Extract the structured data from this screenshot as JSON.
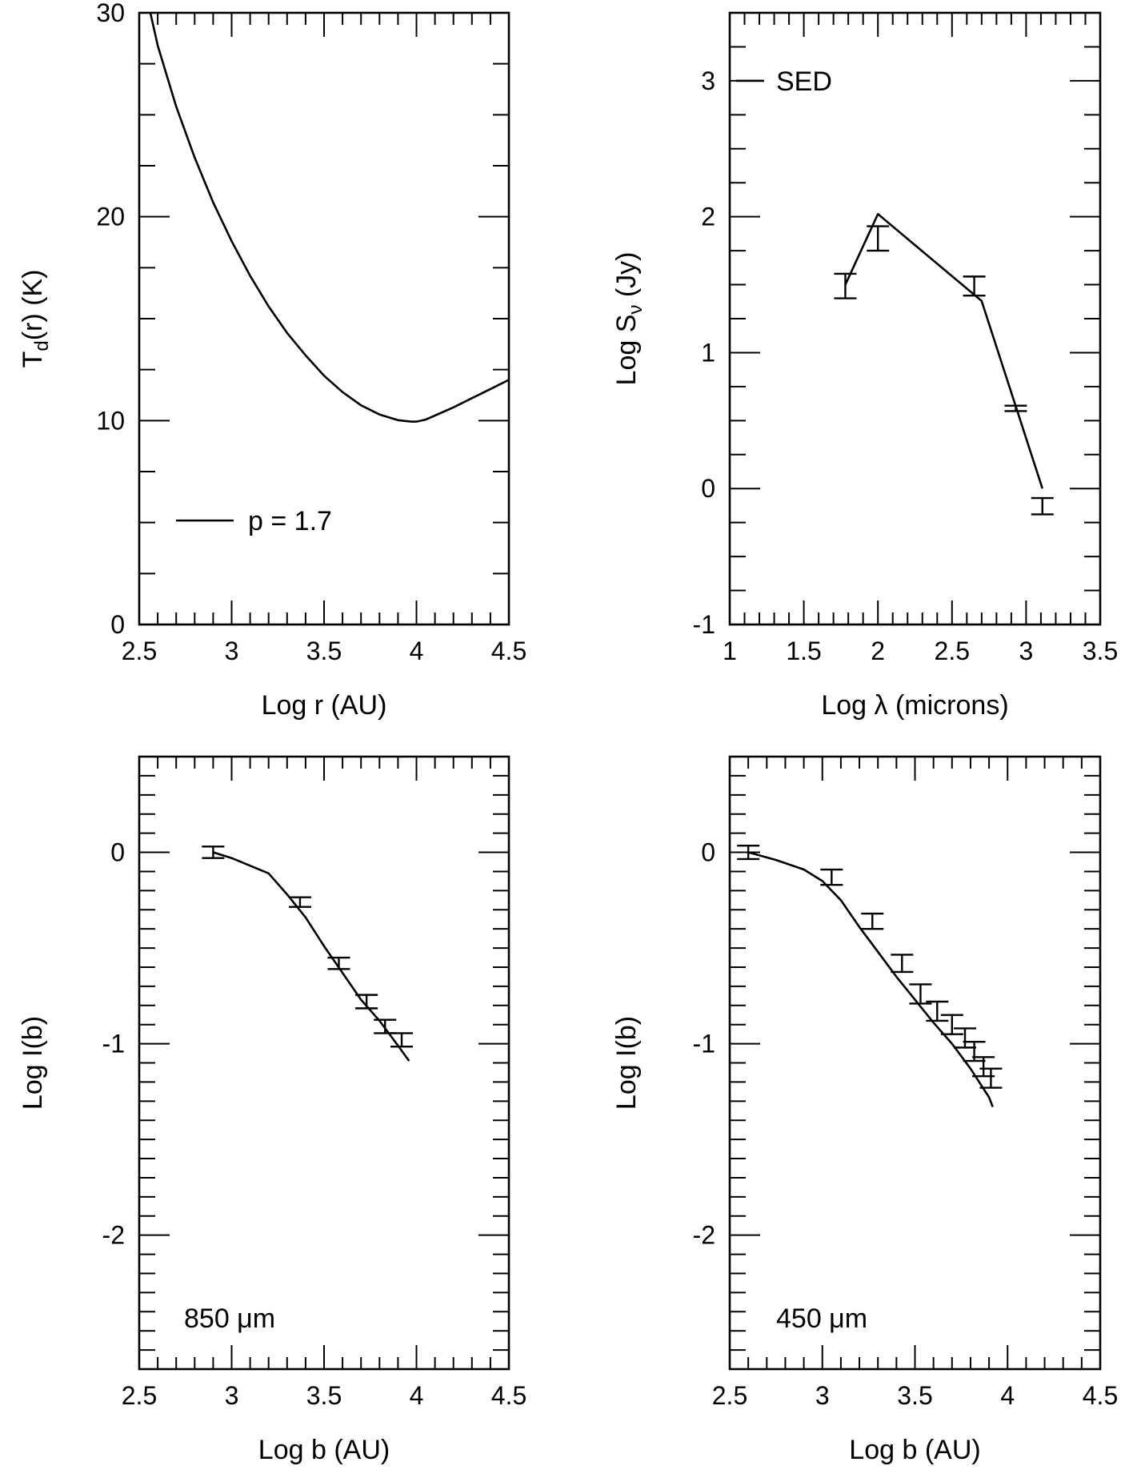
{
  "chart_data": [
    {
      "type": "line",
      "panel": "temperature",
      "xlabel": "Log r (AU)",
      "ylabel": "T_d(r) (K)",
      "ylabel_parts": {
        "main": "T",
        "sub": "d",
        "rest": "(r)  (K)"
      },
      "xlim": [
        2.5,
        4.5
      ],
      "ylim": [
        0,
        30
      ],
      "xticks": [
        2.5,
        3,
        3.5,
        4,
        4.5
      ],
      "xtick_labels": [
        "2.5",
        "3",
        "3.5",
        "4",
        "4.5"
      ],
      "yticks": [
        0,
        10,
        20,
        30
      ],
      "ytick_labels": [
        "0",
        "10",
        "20",
        "30"
      ],
      "legend": {
        "label": "p = 1.7",
        "placement": "lower-left"
      },
      "series": [
        {
          "x": [
            2.56,
            2.6,
            2.7,
            2.8,
            2.9,
            3.0,
            3.1,
            3.2,
            3.3,
            3.4,
            3.5,
            3.6,
            3.7,
            3.8,
            3.9,
            3.97,
            4.0,
            4.05,
            4.1,
            4.2,
            4.3,
            4.4,
            4.5
          ],
          "y": [
            30,
            28.4,
            25.4,
            22.9,
            20.7,
            18.8,
            17.1,
            15.6,
            14.3,
            13.2,
            12.2,
            11.4,
            10.75,
            10.3,
            10.02,
            9.95,
            9.95,
            10.05,
            10.25,
            10.65,
            11.1,
            11.55,
            12.0
          ]
        }
      ]
    },
    {
      "type": "line",
      "panel": "sed",
      "xlabel": "Log λ (microns)",
      "ylabel": "Log Sν (Jy)",
      "ylabel_parts": {
        "main": "Log  S",
        "sub": "ν",
        "rest": "  (Jy)"
      },
      "xlim": [
        1,
        3.5
      ],
      "ylim": [
        -1,
        3.5
      ],
      "xticks": [
        1,
        1.5,
        2,
        2.5,
        3,
        3.5
      ],
      "xtick_labels": [
        "1",
        "1.5",
        "2",
        "2.5",
        "3",
        "3.5"
      ],
      "yticks": [
        -1,
        0,
        1,
        2,
        3
      ],
      "ytick_labels": [
        "-1",
        "0",
        "1",
        "2",
        "3"
      ],
      "legend": {
        "label": "SED",
        "placement": "top-left"
      },
      "series": [
        {
          "x": [
            1.78,
            2.0,
            2.7,
            3.11
          ],
          "y": [
            1.5,
            2.02,
            1.38,
            0.0
          ]
        }
      ],
      "errorbars": [
        {
          "x": 1.78,
          "y": 1.49,
          "err": 0.09
        },
        {
          "x": 2.0,
          "y": 1.84,
          "err": 0.09
        },
        {
          "x": 2.65,
          "y": 1.49,
          "err": 0.07
        },
        {
          "x": 2.93,
          "y": 0.59,
          "err": 0.02
        },
        {
          "x": 3.11,
          "y": -0.13,
          "err": 0.06
        }
      ]
    },
    {
      "type": "line",
      "panel": "profile-850",
      "xlabel": "Log b (AU)",
      "ylabel": "Log I(b)",
      "xlim": [
        2.5,
        4.5
      ],
      "ylim": [
        -2.7,
        0.5
      ],
      "xticks": [
        2.5,
        3,
        3.5,
        4,
        4.5
      ],
      "xtick_labels": [
        "2.5",
        "3",
        "3.5",
        "4",
        "4.5"
      ],
      "yticks": [
        -2,
        -1,
        0
      ],
      "ytick_labels": [
        "-2",
        "-1",
        "0"
      ],
      "annotation": "850  μm",
      "series": [
        {
          "x": [
            2.9,
            3.0,
            3.2,
            3.3,
            3.4,
            3.5,
            3.6,
            3.7,
            3.8,
            3.9,
            3.96
          ],
          "y": [
            0.0,
            -0.03,
            -0.11,
            -0.22,
            -0.34,
            -0.49,
            -0.63,
            -0.77,
            -0.88,
            -1.01,
            -1.09
          ]
        }
      ],
      "errorbars": [
        {
          "x": 2.9,
          "y": 0.0,
          "err": 0.03
        },
        {
          "x": 3.37,
          "y": -0.26,
          "err": 0.025
        },
        {
          "x": 3.58,
          "y": -0.58,
          "err": 0.03
        },
        {
          "x": 3.73,
          "y": -0.78,
          "err": 0.035
        },
        {
          "x": 3.83,
          "y": -0.91,
          "err": 0.035
        },
        {
          "x": 3.92,
          "y": -0.98,
          "err": 0.035
        }
      ]
    },
    {
      "type": "line",
      "panel": "profile-450",
      "xlabel": "Log b (AU)",
      "ylabel": "Log I(b)",
      "xlim": [
        2.5,
        4.5
      ],
      "ylim": [
        -2.7,
        0.5
      ],
      "xticks": [
        2.5,
        3,
        3.5,
        4,
        4.5
      ],
      "xtick_labels": [
        "2.5",
        "3",
        "3.5",
        "4",
        "4.5"
      ],
      "yticks": [
        -2,
        -1,
        0
      ],
      "ytick_labels": [
        "-2",
        "-1",
        "0"
      ],
      "annotation": "450  μm",
      "series": [
        {
          "x": [
            2.6,
            2.75,
            2.9,
            3.0,
            3.1,
            3.2,
            3.3,
            3.4,
            3.5,
            3.6,
            3.7,
            3.8,
            3.9,
            3.92
          ],
          "y": [
            0.0,
            -0.04,
            -0.09,
            -0.15,
            -0.25,
            -0.39,
            -0.52,
            -0.65,
            -0.77,
            -0.89,
            -1.0,
            -1.13,
            -1.28,
            -1.33
          ]
        }
      ],
      "errorbars": [
        {
          "x": 2.6,
          "y": 0.0,
          "err": 0.035
        },
        {
          "x": 3.05,
          "y": -0.13,
          "err": 0.04
        },
        {
          "x": 3.27,
          "y": -0.36,
          "err": 0.04
        },
        {
          "x": 3.43,
          "y": -0.58,
          "err": 0.045
        },
        {
          "x": 3.53,
          "y": -0.74,
          "err": 0.05
        },
        {
          "x": 3.62,
          "y": -0.83,
          "err": 0.05
        },
        {
          "x": 3.7,
          "y": -0.9,
          "err": 0.05
        },
        {
          "x": 3.77,
          "y": -0.97,
          "err": 0.05
        },
        {
          "x": 3.82,
          "y": -1.04,
          "err": 0.05
        },
        {
          "x": 3.87,
          "y": -1.12,
          "err": 0.05
        },
        {
          "x": 3.91,
          "y": -1.18,
          "err": 0.05
        }
      ]
    }
  ]
}
